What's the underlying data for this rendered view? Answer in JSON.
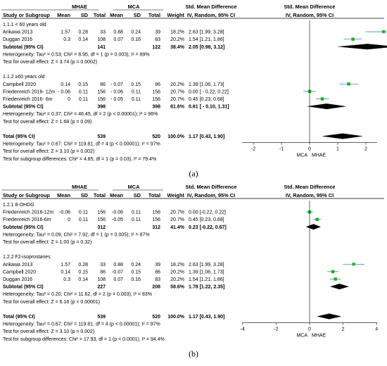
{
  "colors": {
    "point": "#1db21d",
    "line": "#000000",
    "ci_line": "#1a6fd0",
    "diamond": "#000000"
  },
  "chart_data": [
    {
      "type": "forest",
      "caption": "(a)",
      "header": {
        "study": "Study or Subgroup",
        "group1": "MHAE",
        "group2": "MCA",
        "mean": "Mean",
        "sd": "SD",
        "total": "Total",
        "weight": "Weight",
        "effect_title": "Std. Mean Difference",
        "effect_method": "IV, Random, 95% CI",
        "plot_title": "Std. Mean Difference",
        "plot_method": "IV, Random, 95% CI"
      },
      "xlim": [
        -2.5,
        2.5
      ],
      "x_ticks": [
        "-2",
        "-1",
        "0",
        "1",
        "2"
      ],
      "x_tick_values": [
        -2,
        -1,
        0,
        1,
        2
      ],
      "favours_left": "MCA",
      "favours_right": "MHAE",
      "rows": [
        {
          "kind": "subgroup",
          "label": "1.1.1 < 60 years old"
        },
        {
          "kind": "study",
          "study": "Arikawa 2013",
          "m1": "1.57",
          "sd1": "0.28",
          "n1": "33",
          "m2": "0.88",
          "sd2": "0.24",
          "n2": "39",
          "weight": "18.2%",
          "ci": "2.63 [1.99, 3.28]",
          "est": 2.63,
          "lo": 1.99,
          "hi": 3.28,
          "w": 18.2
        },
        {
          "kind": "study",
          "study": "Duggan 2016",
          "m1": "0.3",
          "sd1": "0.14",
          "n1": "108",
          "m2": "0.07",
          "sd2": "0.16",
          "n2": "83",
          "weight": "20.2%",
          "ci": "1.54 [1.21, 1.86]",
          "est": 1.54,
          "lo": 1.21,
          "hi": 1.86,
          "w": 20.2
        },
        {
          "kind": "subtotal",
          "label": "Subtotal (95% CI)",
          "n1": "141",
          "n2": "122",
          "weight": "38.4%",
          "ci": "2.05 [0.98, 3.12]",
          "est": 2.05,
          "lo": 0.98,
          "hi": 3.12
        },
        {
          "kind": "note",
          "text": "Heterogeneity: Tau² = 0.53; Chi² = 8.95, df = 1 (p = 0.003); I² = 89%"
        },
        {
          "kind": "note",
          "text": "Test for overall effect: Z = 3.74 (p = 0.0002)"
        },
        {
          "kind": "blank"
        },
        {
          "kind": "subgroup",
          "label": "1.1.2 ≥60 years old"
        },
        {
          "kind": "study",
          "study": "Campbell 2020",
          "m1": "0.14",
          "sd1": "0.15",
          "n1": "86",
          "m2": "- 0.07",
          "sd2": "0.15",
          "n2": "86",
          "weight": "20.2%",
          "ci": "1.39 [1.06, 1.73]",
          "est": 1.39,
          "lo": 1.06,
          "hi": 1.73,
          "w": 20.2
        },
        {
          "kind": "study",
          "study": "Friedenreich 2016- 12m",
          "m1": "- 0.06",
          "sd1": "0.11",
          "n1": "156",
          "m2": "- 0.06",
          "sd2": "0.11",
          "n2": "156",
          "weight": "20.7%",
          "ci": "0.00 [ - 0.22, 0.22]",
          "est": 0.0,
          "lo": -0.22,
          "hi": 0.22,
          "w": 20.7
        },
        {
          "kind": "study",
          "study": "Friedenreich 2016- 6m",
          "m1": "0",
          "sd1": "0.11",
          "n1": "156",
          "m2": "- 0.05",
          "sd2": "0.11",
          "n2": "156",
          "weight": "20.7%",
          "ci": "0.45 [0.23, 0.68]",
          "est": 0.45,
          "lo": 0.23,
          "hi": 0.68,
          "w": 20.7
        },
        {
          "kind": "subtotal",
          "label": "Subtotal (95% CI)",
          "n1": "398",
          "n2": "398",
          "weight": "61.6%",
          "ci": "0.61 [ - 0.10, 1.31]",
          "est": 0.61,
          "lo": -0.1,
          "hi": 1.31
        },
        {
          "kind": "note",
          "text": "Heterogeneity: Tau² = 0.37; Chi² = 46.45, df = 2 (p < 0.00001); I² = 96%"
        },
        {
          "kind": "note",
          "text": "Test for overall effect: Z = 1.68 (p = 0.09)"
        },
        {
          "kind": "blank"
        },
        {
          "kind": "total",
          "label": "Total (95% CI)",
          "n1": "539",
          "n2": "520",
          "weight": "100.0%",
          "ci": "1.17 [0.43, 1.90]",
          "est": 1.17,
          "lo": 0.43,
          "hi": 1.9
        },
        {
          "kind": "note",
          "text": "Heterogeneity: Tau² = 0.67; Chi² = 119.81, df = 4 (p < 0.00001); I² = 97%"
        },
        {
          "kind": "note",
          "text": "Test for overall effect: Z = 3.10 (p = 0.002)"
        },
        {
          "kind": "note",
          "text": "Test for subgroup differences: Chi² = 4.85, df = 1 (p = 0.03), I² = 79.4%"
        }
      ]
    },
    {
      "type": "forest",
      "caption": "(b)",
      "header": {
        "study": "Study or Subgroup",
        "group1": "MHAE",
        "group2": "MCA",
        "mean": "Mean",
        "sd": "SD",
        "total": "Total",
        "weight": "Weight",
        "effect_title": "Std. Mean Difference",
        "effect_method": "IV, Random, 95% CI",
        "plot_title": "Std. Mean Difference",
        "plot_method": "IV, Random, 95% CI"
      },
      "xlim": [
        -4.2,
        4.2
      ],
      "x_ticks": [
        "-4",
        "-2",
        "0",
        "2",
        "4"
      ],
      "x_tick_values": [
        -4,
        -2,
        0,
        2,
        4
      ],
      "favours_left": "MCA",
      "favours_right": "MHAE",
      "rows": [
        {
          "kind": "subgroup",
          "label": "1.2.1 8-OHDG"
        },
        {
          "kind": "study",
          "study": "Friedenreich 2016-12m",
          "m1": "-0.06",
          "sd1": "0.11",
          "n1": "156",
          "m2": "-0.06",
          "sd2": "0.11",
          "n2": "156",
          "weight": "20.7%",
          "ci": "0.00 [-0.22, 0.22]",
          "est": 0.0,
          "lo": -0.22,
          "hi": 0.22,
          "w": 20.7
        },
        {
          "kind": "study",
          "study": "Friedenreich 2016-6m",
          "m1": "0",
          "sd1": "0.11",
          "n1": "156",
          "m2": "-0.05",
          "sd2": "0.11",
          "n2": "156",
          "weight": "20.7%",
          "ci": "0.45 [0.23, 0.68]",
          "est": 0.45,
          "lo": 0.23,
          "hi": 0.68,
          "w": 20.7
        },
        {
          "kind": "subtotal",
          "label": "Subtotal (95% CI)",
          "n1": "312",
          "n2": "312",
          "weight": "41.4%",
          "ci": "0.23 [-0.22, 0.67]",
          "est": 0.23,
          "lo": -0.22,
          "hi": 0.67
        },
        {
          "kind": "note",
          "text": "Heterogeneity: Tau² = 0.09; Chi² = 7.92, df = 1 (p = 0.005); I² = 87%"
        },
        {
          "kind": "note",
          "text": "Test for overall effect: Z = 1.00 (p = 0.32)"
        },
        {
          "kind": "blank"
        },
        {
          "kind": "subgroup",
          "label": "1.2.2 F2-isoprostanes"
        },
        {
          "kind": "study",
          "study": "Arikawa 2013",
          "m1": "1.57",
          "sd1": "0.28",
          "n1": "33",
          "m2": "0.88",
          "sd2": "0.24",
          "n2": "39",
          "weight": "18.2%",
          "ci": "2.63 [1.99, 3.28]",
          "est": 2.63,
          "lo": 1.99,
          "hi": 3.28,
          "w": 18.2
        },
        {
          "kind": "study",
          "study": "Campbell 2020",
          "m1": "0.14",
          "sd1": "0.15",
          "n1": "86",
          "m2": "-0.07",
          "sd2": "0.15",
          "n2": "86",
          "weight": "20.2%",
          "ci": "1.39 [1.06, 1.73]",
          "est": 1.39,
          "lo": 1.06,
          "hi": 1.73,
          "w": 20.2
        },
        {
          "kind": "study",
          "study": "Duggan 2016",
          "m1": "0.3",
          "sd1": "0.14",
          "n1": "108",
          "m2": "0.07",
          "sd2": "0.16",
          "n2": "83",
          "weight": "20.2%",
          "ci": "1.54 [1.21, 1.86]",
          "est": 1.54,
          "lo": 1.21,
          "hi": 1.86,
          "w": 20.2
        },
        {
          "kind": "subtotal",
          "label": "Subtotal (95% CI)",
          "n1": "227",
          "n2": "208",
          "weight": "58.6%",
          "ci": "1.78 [1.22, 2.35]",
          "est": 1.78,
          "lo": 1.22,
          "hi": 2.35
        },
        {
          "kind": "note",
          "text": "Heterogeneity: Tau² = 0.20; Chi² = 11.62, df = 2 (p = 0.003); I² = 83%"
        },
        {
          "kind": "note",
          "text": "Test for overall effect: Z = 6.16 (p < 0.00001)"
        },
        {
          "kind": "blank"
        },
        {
          "kind": "total",
          "label": "Total (95% CI)",
          "n1": "539",
          "n2": "520",
          "weight": "100.0%",
          "ci": "1.17 [0.43, 1.90]",
          "est": 1.17,
          "lo": 0.43,
          "hi": 1.9
        },
        {
          "kind": "note",
          "text": "Heterogeneity: Tau² = 0.67; Chi² = 119.81, df = 4 (p < 0.00001); I² = 97%"
        },
        {
          "kind": "note",
          "text": "Test for overall effect: Z = 3.10 (p = 0.002)"
        },
        {
          "kind": "note",
          "text": "Test for subgroup differences: Chi² = 17.93, df = 1 (p < 0.0001), I² = 94.4%"
        }
      ]
    }
  ]
}
